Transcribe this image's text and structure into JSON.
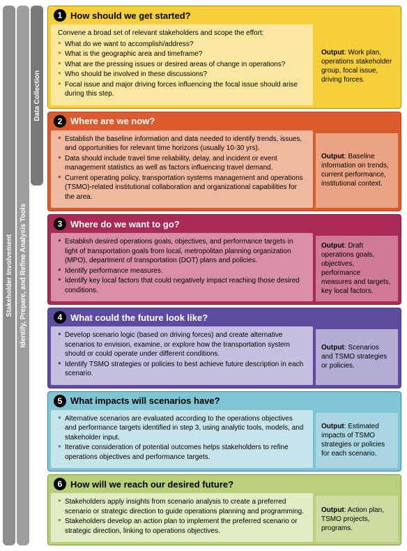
{
  "sidebarTabs": [
    {
      "label": "Stakeholder Involvement",
      "bg": "#8d8e8f",
      "heightSteps": 6
    },
    {
      "label": "Identify, Prepare, and Refine Analysis Tools",
      "bg": "#9d9e9f",
      "heightSteps": 6
    },
    {
      "label": "Data Collection",
      "bg": "#777879",
      "heightSteps": 2
    }
  ],
  "steps": [
    {
      "number": "1",
      "title": "How should we get started?",
      "titleColor": "#000000",
      "borderColor": "#b38f00",
      "headerBg": "#f6cf3a",
      "contentBg": "#fbe8a0",
      "outputBg": "#f6cf3a",
      "bulletColor": "#b38f00",
      "intro": "Convene a broad set of relevant stakeholders and scope the effort:",
      "bullets": [
        "What do we want to accomplish/address?",
        "What is the geographic area and timeframe?",
        "What are the pressing issues or desired areas of change in operations?",
        "Who should be involved in these discussions?",
        "Focal issue and major driving forces influencing the focal issue should arise during this step."
      ],
      "outputLabel": "Output",
      "outputText": ": Work plan, operations stakeholder group, focal issue, driving forces."
    },
    {
      "number": "2",
      "title": "Where are we now?",
      "titleColor": "#ffffff",
      "borderColor": "#b8441e",
      "headerBg": "#d95b2e",
      "contentBg": "#f0b99f",
      "outputBg": "#eaa483",
      "bulletColor": "#b8441e",
      "intro": "",
      "bullets": [
        "Establish the baseline information and data needed to identify trends, issues, and opportunities for relevant time horizons (usually 10-30 yrs).",
        "Data should include travel time reliability, delay, and incident or event management statistics as well as factors influencing travel demand.",
        "Current operating policy, transportation systems management and operations (TSMO)-related institutional collaboration and organizational capabilities for the area."
      ],
      "outputLabel": "Output",
      "outputText": ": Baseline information on trends, current performance, institutional context."
    },
    {
      "number": "3",
      "title": "Where do we want to go?",
      "titleColor": "#ffffff",
      "borderColor": "#8e1d47",
      "headerBg": "#a92a56",
      "contentBg": "#d98fa9",
      "outputBg": "#cf7a97",
      "bulletColor": "#8e1d47",
      "intro": "",
      "bullets": [
        "Establish desired operations goals, objectives, and performance targets in light of transportation goals from local, metropolitan planning organization (MPO), department of transportation (DOT) plans and policies.",
        "Identify performance measures.",
        "Identify key local factors that could negatively impact reaching those desired conditions."
      ],
      "outputLabel": "Output",
      "outputText": ": Draft operations goals, objectives, performance measures and targets, key local factors."
    },
    {
      "number": "4",
      "title": "What could the future look like?",
      "titleColor": "#ffffff",
      "borderColor": "#4b3a8f",
      "headerBg": "#5d4ba0",
      "contentBg": "#c6bfe0",
      "outputBg": "#b6add6",
      "bulletColor": "#4b3a8f",
      "intro": "",
      "bullets": [
        "Develop scenario logic (based on driving forces) and create alternative scenarios to envision, examine, or explore how the transportation system should or could operate under different conditions.",
        "Identify TSMO strategies or policies to best achieve future description in each scenario."
      ],
      "outputLabel": "Output",
      "outputText": ": Scenarios and TSMO strategies or policies."
    },
    {
      "number": "5",
      "title": "What impacts will scenarios have?",
      "titleColor": "#000000",
      "borderColor": "#2d8aa0",
      "headerBg": "#7fc5d6",
      "contentBg": "#c8e4eb",
      "outputBg": "#a9d6e1",
      "bulletColor": "#2d8aa0",
      "intro": "",
      "bullets": [
        "Alternative scenarios are evaluated according to the operations objectives and performance targets identified in step 3, using analytic tools, models, and stakeholder input.",
        "Iterative consideration of potential outcomes helps stakeholders to refine operations objectives and performance targets."
      ],
      "outputLabel": "Output",
      "outputText": ": Estimated impacts of TSMO strategies or policies for each scenario."
    },
    {
      "number": "6",
      "title": "How will we reach our desired future?",
      "titleColor": "#000000",
      "borderColor": "#7e9a3f",
      "headerBg": "#b9d07a",
      "contentBg": "#e1ebc4",
      "outputBg": "#cddca2",
      "bulletColor": "#7e9a3f",
      "intro": "",
      "bullets": [
        "Stakeholders apply insights from scenario analysis to create a preferred scenario or strategic direction to guide operations planning and programming.",
        "Stakeholders develop an action plan to implement the preferred scenario or strategic direction, linking to operations objectives."
      ],
      "outputLabel": "Output",
      "outputText": ": Action plan, TSMO projects, programs."
    }
  ]
}
